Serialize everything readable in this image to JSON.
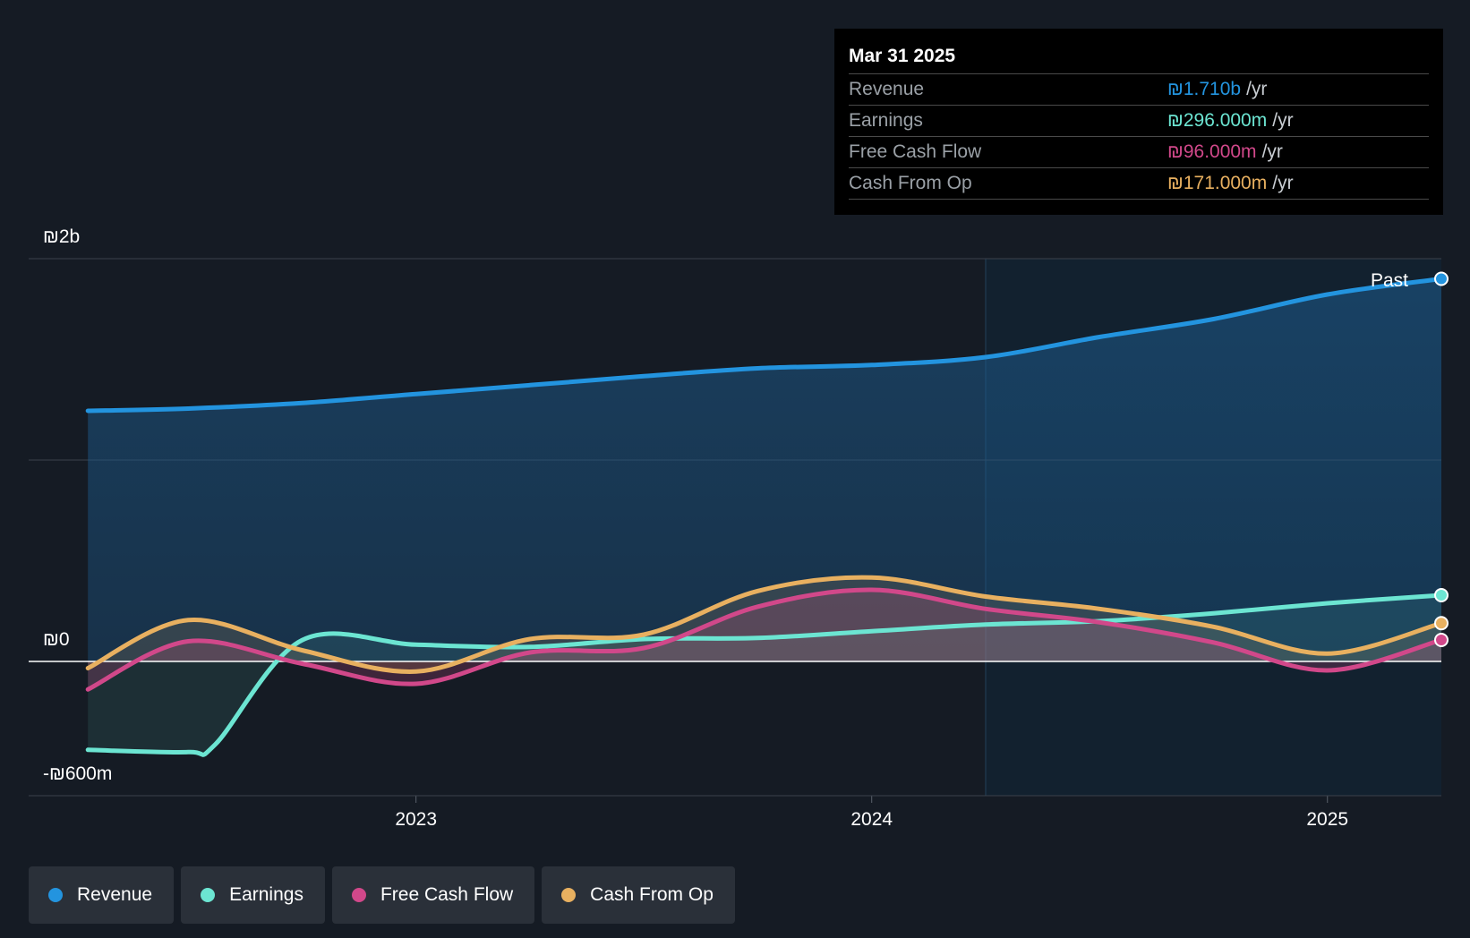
{
  "tooltip": {
    "date": "Mar 31 2025",
    "rows": [
      {
        "name": "Revenue",
        "value": "₪1.710b",
        "unit": "/yr",
        "color": "#2394df"
      },
      {
        "name": "Earnings",
        "value": "₪296.000m",
        "unit": "/yr",
        "color": "#6ce5d2"
      },
      {
        "name": "Free Cash Flow",
        "value": "₪96.000m",
        "unit": "/yr",
        "color": "#d1488a"
      },
      {
        "name": "Cash From Op",
        "value": "₪171.000m",
        "unit": "/yr",
        "color": "#e8b060"
      }
    ]
  },
  "past_label": "Past",
  "legend": [
    {
      "label": "Revenue",
      "color": "#2394df"
    },
    {
      "label": "Earnings",
      "color": "#6ce5d2"
    },
    {
      "label": "Free Cash Flow",
      "color": "#d1488a"
    },
    {
      "label": "Cash From Op",
      "color": "#e8b060"
    }
  ],
  "chart_data": {
    "type": "line",
    "ylim": [
      -600000000,
      1800000000
    ],
    "y_tick_labels": [
      {
        "value": 1800000000,
        "label": "₪2b"
      },
      {
        "value": 0,
        "label": "₪0"
      },
      {
        "value": -600000000,
        "label": "-₪600m"
      }
    ],
    "x_ticks": [
      {
        "value": 2023.0,
        "label": "2023"
      },
      {
        "value": 2024.0,
        "label": "2024"
      },
      {
        "value": 2025.0,
        "label": "2025"
      }
    ],
    "xlim": [
      2022.15,
      2025.25
    ],
    "past_start": 2024.25,
    "grid": true,
    "legend_position": "bottom-left",
    "series": [
      {
        "name": "Revenue",
        "color": "#2394df",
        "points": [
          [
            2022.28,
            1120000000
          ],
          [
            2022.5,
            1130000000
          ],
          [
            2022.75,
            1155000000
          ],
          [
            2023.0,
            1195000000
          ],
          [
            2023.25,
            1235000000
          ],
          [
            2023.5,
            1275000000
          ],
          [
            2023.75,
            1310000000
          ],
          [
            2024.0,
            1325000000
          ],
          [
            2024.25,
            1360000000
          ],
          [
            2024.5,
            1450000000
          ],
          [
            2024.75,
            1530000000
          ],
          [
            2025.0,
            1640000000
          ],
          [
            2025.25,
            1710000000
          ]
        ]
      },
      {
        "name": "Earnings",
        "color": "#6ce5d2",
        "points": [
          [
            2022.28,
            -395000000
          ],
          [
            2022.5,
            -405000000
          ],
          [
            2022.56,
            -370000000
          ],
          [
            2022.75,
            95000000
          ],
          [
            2023.0,
            75000000
          ],
          [
            2023.25,
            65000000
          ],
          [
            2023.5,
            100000000
          ],
          [
            2023.75,
            105000000
          ],
          [
            2024.0,
            135000000
          ],
          [
            2024.25,
            165000000
          ],
          [
            2024.5,
            180000000
          ],
          [
            2024.75,
            215000000
          ],
          [
            2025.0,
            260000000
          ],
          [
            2025.25,
            296000000
          ]
        ]
      },
      {
        "name": "Free Cash Flow",
        "color": "#d1488a",
        "points": [
          [
            2022.28,
            -125000000
          ],
          [
            2022.5,
            90000000
          ],
          [
            2022.75,
            -10000000
          ],
          [
            2023.0,
            -100000000
          ],
          [
            2023.25,
            40000000
          ],
          [
            2023.5,
            60000000
          ],
          [
            2023.75,
            245000000
          ],
          [
            2024.0,
            320000000
          ],
          [
            2024.25,
            235000000
          ],
          [
            2024.5,
            175000000
          ],
          [
            2024.75,
            85000000
          ],
          [
            2025.0,
            -40000000
          ],
          [
            2025.25,
            96000000
          ]
        ]
      },
      {
        "name": "Cash From Op",
        "color": "#e8b060",
        "points": [
          [
            2022.28,
            -30000000
          ],
          [
            2022.5,
            185000000
          ],
          [
            2022.75,
            50000000
          ],
          [
            2023.0,
            -45000000
          ],
          [
            2023.25,
            100000000
          ],
          [
            2023.5,
            120000000
          ],
          [
            2023.75,
            315000000
          ],
          [
            2024.0,
            375000000
          ],
          [
            2024.25,
            290000000
          ],
          [
            2024.5,
            235000000
          ],
          [
            2024.75,
            155000000
          ],
          [
            2025.0,
            35000000
          ],
          [
            2025.25,
            171000000
          ]
        ]
      }
    ]
  }
}
